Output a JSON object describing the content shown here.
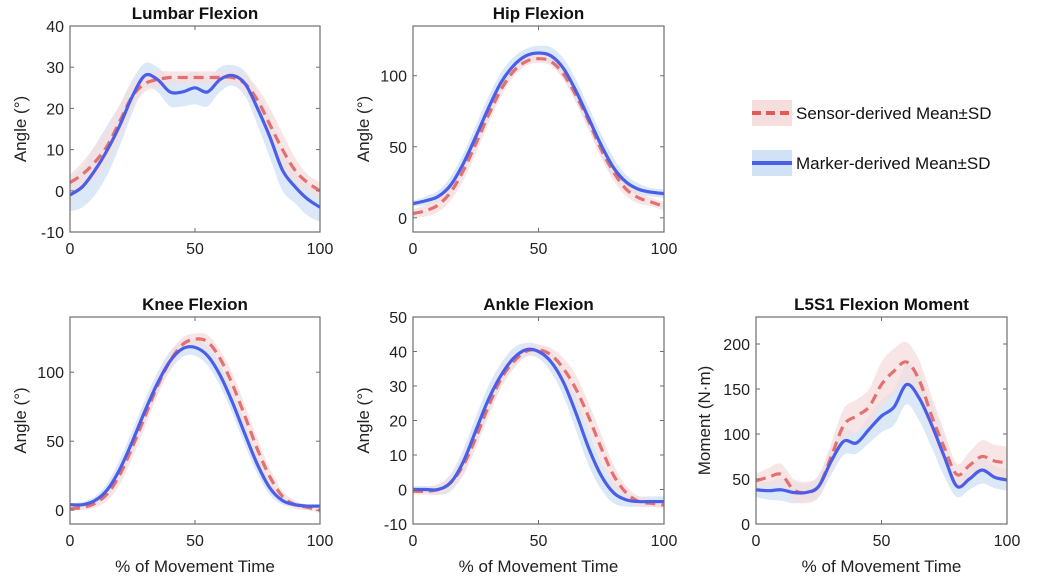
{
  "figure": {
    "legend": {
      "placement": "right",
      "entries": [
        {
          "label": "Sensor-derived Mean±SD",
          "style": "dashed",
          "line_color": "#e05a5a",
          "band_color": "#f6dede"
        },
        {
          "label": "Marker-derived Mean±SD",
          "style": "solid",
          "line_color": "#4a5ee8",
          "band_color": "#d2e2f6"
        }
      ]
    }
  },
  "chart_data": [
    {
      "type": "line",
      "title": "Lumbar Flexion",
      "xlabel": "",
      "ylabel": "Angle (°)",
      "xlim": [
        0,
        100
      ],
      "ylim": [
        -10,
        40
      ],
      "xticks": [
        0,
        50,
        100
      ],
      "yticks": [
        -10,
        0,
        10,
        20,
        30,
        40
      ],
      "grid": false,
      "x": [
        0,
        5,
        10,
        15,
        20,
        25,
        30,
        35,
        40,
        45,
        50,
        55,
        60,
        65,
        70,
        75,
        80,
        85,
        90,
        95,
        100
      ],
      "series": [
        {
          "name": "Sensor-derived",
          "mean": [
            2,
            4,
            7,
            11,
            17,
            23,
            26,
            27,
            27.5,
            27.5,
            27.5,
            27.5,
            27.5,
            27.5,
            26,
            22,
            16,
            10,
            5,
            2,
            0
          ],
          "sd": [
            2,
            3,
            4,
            4,
            4,
            3,
            2,
            2,
            1.5,
            1.5,
            1.5,
            1.5,
            1.5,
            1.5,
            2,
            3,
            4,
            4,
            3,
            2,
            2
          ]
        },
        {
          "name": "Marker-derived",
          "mean": [
            -1,
            1,
            5,
            10,
            16,
            23,
            28,
            27,
            24,
            24,
            25,
            24,
            27,
            28,
            26,
            20,
            13,
            5,
            1,
            -2,
            -4
          ],
          "sd": [
            4,
            5,
            6,
            6,
            5,
            4,
            3,
            3,
            3.5,
            3.5,
            4,
            3.5,
            3,
            2.5,
            3,
            4,
            5,
            5,
            4,
            4,
            3.5
          ]
        }
      ]
    },
    {
      "type": "line",
      "title": "Hip Flexion",
      "xlabel": "",
      "ylabel": "Angle (°)",
      "xlim": [
        0,
        100
      ],
      "ylim": [
        -10,
        135
      ],
      "xticks": [
        0,
        50,
        100
      ],
      "yticks": [
        0,
        50,
        100
      ],
      "grid": false,
      "x": [
        0,
        5,
        10,
        15,
        20,
        25,
        30,
        35,
        40,
        45,
        50,
        55,
        60,
        65,
        70,
        75,
        80,
        85,
        90,
        95,
        100
      ],
      "series": [
        {
          "name": "Sensor-derived",
          "mean": [
            3,
            5,
            9,
            18,
            33,
            52,
            72,
            90,
            103,
            110,
            112,
            110,
            101,
            86,
            68,
            48,
            32,
            20,
            14,
            11,
            8
          ],
          "sd": [
            3,
            4,
            5,
            6,
            7,
            7,
            6,
            5,
            4,
            3,
            3,
            3,
            4,
            5,
            6,
            6,
            6,
            5,
            4,
            3,
            3
          ]
        },
        {
          "name": "Marker-derived",
          "mean": [
            10,
            12,
            15,
            23,
            38,
            57,
            77,
            95,
            107,
            114,
            116,
            114,
            105,
            89,
            70,
            51,
            35,
            25,
            20,
            18,
            17
          ],
          "sd": [
            2,
            3,
            4,
            6,
            7,
            8,
            8,
            7,
            6,
            5,
            5,
            6,
            7,
            8,
            8,
            8,
            7,
            5,
            4,
            3,
            3
          ]
        }
      ]
    },
    {
      "type": "line",
      "title": "Knee Flexion",
      "xlabel": "% of Movement Time",
      "ylabel": "Angle (°)",
      "xlim": [
        0,
        100
      ],
      "ylim": [
        -10,
        140
      ],
      "xticks": [
        0,
        50,
        100
      ],
      "yticks": [
        0,
        50,
        100
      ],
      "grid": false,
      "x": [
        0,
        5,
        10,
        15,
        20,
        25,
        30,
        35,
        40,
        45,
        50,
        55,
        60,
        65,
        70,
        75,
        80,
        85,
        90,
        95,
        100
      ],
      "series": [
        {
          "name": "Sensor-derived",
          "mean": [
            1,
            2,
            5,
            12,
            26,
            46,
            68,
            90,
            108,
            120,
            124,
            122,
            110,
            91,
            68,
            44,
            24,
            10,
            4,
            2,
            0
          ],
          "sd": [
            1,
            2,
            3,
            5,
            7,
            8,
            8,
            7,
            6,
            5,
            4,
            5,
            6,
            8,
            8,
            8,
            6,
            4,
            3,
            2,
            2
          ]
        },
        {
          "name": "Marker-derived",
          "mean": [
            4,
            4,
            7,
            15,
            30,
            50,
            72,
            92,
            108,
            117,
            118,
            112,
            98,
            78,
            55,
            33,
            16,
            7,
            4,
            3,
            3
          ],
          "sd": [
            1,
            2,
            3,
            5,
            7,
            8,
            8,
            8,
            7,
            6,
            6,
            7,
            8,
            8,
            8,
            7,
            5,
            3,
            2,
            1,
            1
          ]
        }
      ]
    },
    {
      "type": "line",
      "title": "Ankle Flexion",
      "xlabel": "% of Movement Time",
      "ylabel": "Angle (°)",
      "xlim": [
        0,
        100
      ],
      "ylim": [
        -10,
        50
      ],
      "xticks": [
        0,
        50,
        100
      ],
      "yticks": [
        -10,
        0,
        10,
        20,
        30,
        40,
        50
      ],
      "grid": false,
      "x": [
        0,
        5,
        10,
        15,
        20,
        25,
        30,
        35,
        40,
        45,
        50,
        55,
        60,
        65,
        70,
        75,
        80,
        85,
        90,
        95,
        100
      ],
      "series": [
        {
          "name": "Sensor-derived",
          "mean": [
            -0.5,
            -0.5,
            0,
            2,
            7,
            15,
            24,
            32,
            37,
            40,
            40.5,
            39,
            35,
            29,
            21,
            12,
            4,
            -1,
            -3.5,
            -4,
            -4.5
          ],
          "sd": [
            1,
            1,
            1.5,
            2,
            3,
            3,
            3,
            2.5,
            2,
            1.5,
            1.5,
            2,
            3,
            4,
            4,
            4,
            3,
            2,
            1.5,
            1,
            1
          ]
        },
        {
          "name": "Marker-derived",
          "mean": [
            0,
            0,
            0,
            2,
            8,
            17,
            26,
            33,
            38,
            40.5,
            40,
            37,
            31,
            22,
            12,
            4,
            -1,
            -3,
            -3.5,
            -3.5,
            -3.5
          ],
          "sd": [
            1,
            1,
            1.5,
            2.5,
            3.5,
            4,
            4,
            3.5,
            3,
            2,
            2,
            3,
            4,
            5,
            5,
            4,
            3,
            2,
            1.5,
            1.5,
            1.5
          ]
        }
      ]
    },
    {
      "type": "line",
      "title": "L5S1 Flexion Moment",
      "xlabel": "% of Movement Time",
      "ylabel": "Moment (N·m)",
      "xlim": [
        0,
        100
      ],
      "ylim": [
        0,
        230
      ],
      "xticks": [
        0,
        50,
        100
      ],
      "yticks": [
        0,
        50,
        100,
        150,
        200
      ],
      "grid": false,
      "x": [
        0,
        5,
        10,
        15,
        20,
        25,
        30,
        35,
        40,
        45,
        50,
        55,
        60,
        65,
        70,
        75,
        80,
        85,
        90,
        95,
        100
      ],
      "series": [
        {
          "name": "Sensor-derived",
          "mean": [
            48,
            52,
            55,
            38,
            35,
            42,
            75,
            110,
            120,
            130,
            155,
            170,
            180,
            160,
            120,
            85,
            55,
            65,
            75,
            70,
            68
          ],
          "sd": [
            8,
            10,
            12,
            12,
            12,
            12,
            15,
            18,
            18,
            20,
            25,
            25,
            22,
            22,
            22,
            18,
            12,
            15,
            18,
            18,
            18
          ]
        },
        {
          "name": "Marker-derived",
          "mean": [
            38,
            37,
            38,
            35,
            35,
            42,
            70,
            92,
            90,
            105,
            120,
            130,
            155,
            140,
            110,
            75,
            42,
            50,
            60,
            52,
            49
          ],
          "sd": [
            8,
            10,
            12,
            12,
            10,
            12,
            15,
            15,
            12,
            15,
            18,
            20,
            22,
            25,
            25,
            22,
            12,
            12,
            15,
            12,
            12
          ]
        }
      ]
    }
  ]
}
